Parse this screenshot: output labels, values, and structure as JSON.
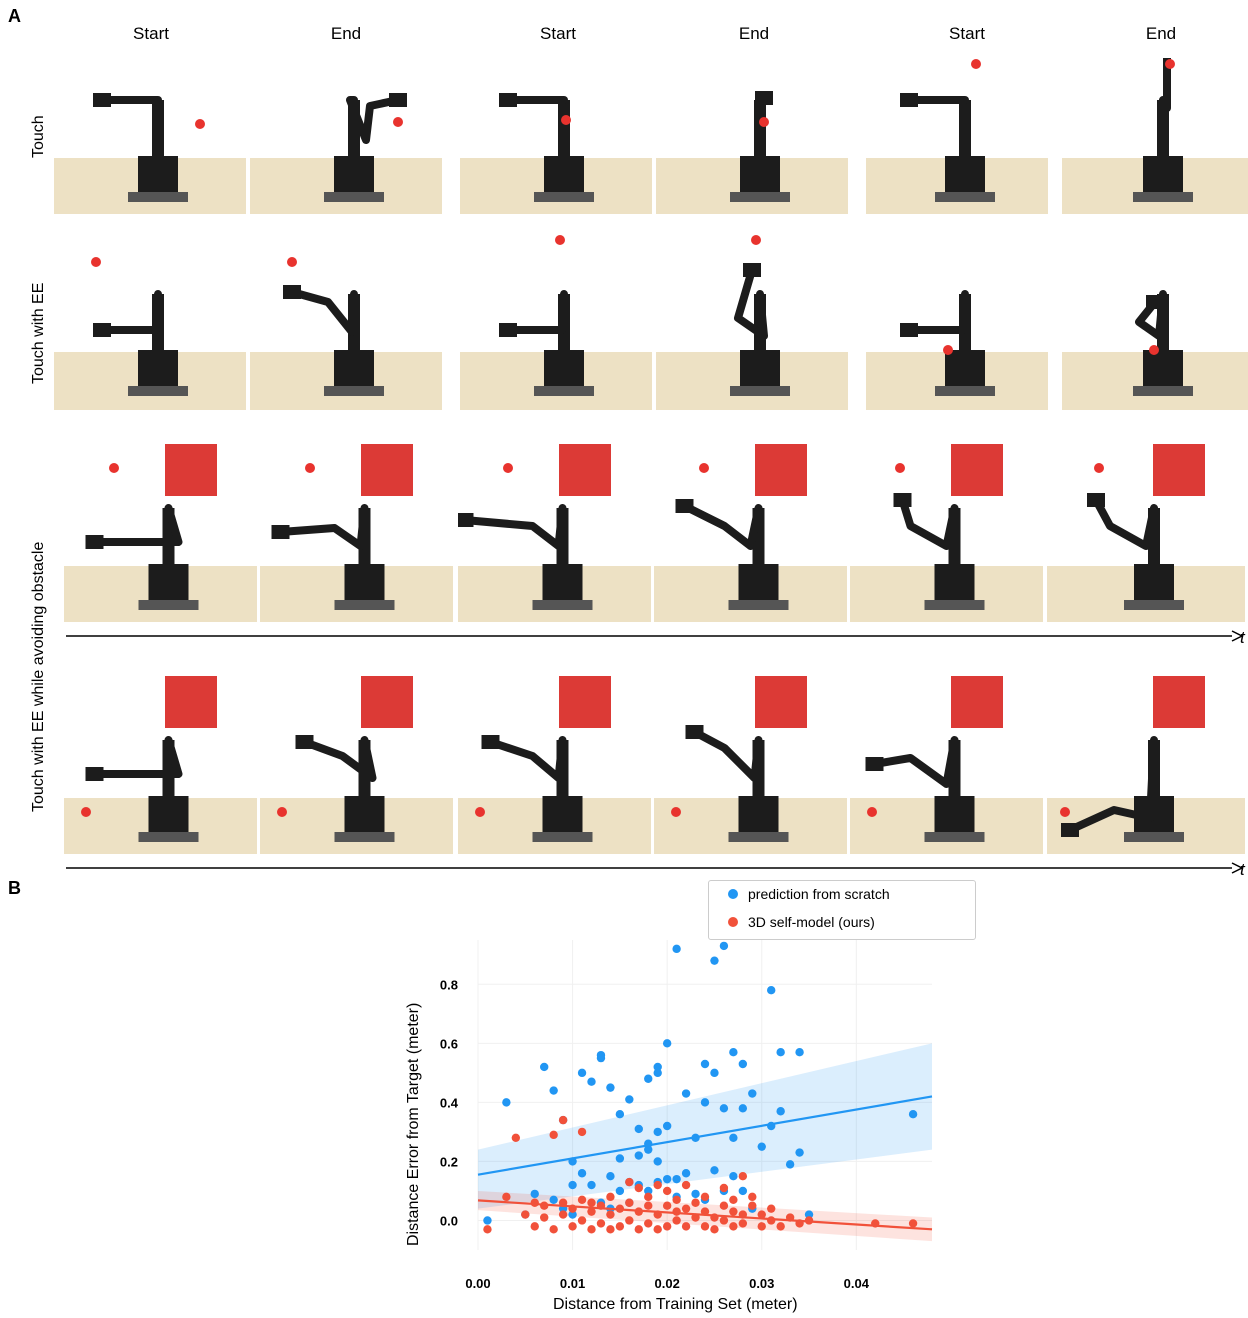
{
  "panel_a": {
    "label": "A",
    "columns": [
      "Start",
      "End",
      "Start",
      "End",
      "Start",
      "End"
    ],
    "rows": [
      "Touch",
      "Touch with EE",
      "Touch with EE while avoiding obstacle"
    ],
    "time_axis_label": "t",
    "colors": {
      "table": "#ede1c4",
      "robot": "#1c1c1c",
      "target": "#e8332e",
      "obstacle": "#dc3a36"
    }
  },
  "panel_b": {
    "label": "B",
    "legend": {
      "scratch": "prediction from scratch",
      "ours": "3D self-model (ours)"
    },
    "colors": {
      "scratch": "#2196f3",
      "ours": "#f1513a"
    }
  },
  "chart_data": {
    "type": "scatter",
    "title": "",
    "xlabel": "Distance from Training Set (meter)",
    "ylabel": "Distance Error from Target (meter)",
    "xlim": [
      0.0,
      0.048
    ],
    "ylim": [
      -0.1,
      0.95
    ],
    "xticks": [
      "0.00",
      "0.01",
      "0.02",
      "0.03",
      "0.04"
    ],
    "yticks": [
      "0.0",
      "0.2",
      "0.4",
      "0.6",
      "0.8"
    ],
    "grid": true,
    "legend_position": "top",
    "series": [
      {
        "name": "prediction from scratch",
        "points": [
          [
            0.001,
            0.0
          ],
          [
            0.003,
            0.4
          ],
          [
            0.005,
            0.02
          ],
          [
            0.006,
            0.09
          ],
          [
            0.007,
            0.52
          ],
          [
            0.008,
            0.44
          ],
          [
            0.008,
            0.07
          ],
          [
            0.009,
            0.04
          ],
          [
            0.009,
            0.34
          ],
          [
            0.01,
            0.2
          ],
          [
            0.01,
            0.12
          ],
          [
            0.01,
            0.02
          ],
          [
            0.011,
            0.16
          ],
          [
            0.011,
            0.5
          ],
          [
            0.012,
            0.47
          ],
          [
            0.012,
            0.12
          ],
          [
            0.013,
            0.55
          ],
          [
            0.013,
            0.56
          ],
          [
            0.013,
            0.06
          ],
          [
            0.014,
            0.15
          ],
          [
            0.014,
            0.45
          ],
          [
            0.014,
            0.04
          ],
          [
            0.015,
            0.21
          ],
          [
            0.015,
            0.36
          ],
          [
            0.015,
            0.1
          ],
          [
            0.016,
            0.41
          ],
          [
            0.016,
            0.13
          ],
          [
            0.016,
            0.06
          ],
          [
            0.017,
            0.31
          ],
          [
            0.017,
            0.22
          ],
          [
            0.017,
            0.12
          ],
          [
            0.018,
            0.24
          ],
          [
            0.018,
            0.48
          ],
          [
            0.018,
            0.26
          ],
          [
            0.018,
            0.1
          ],
          [
            0.019,
            0.5
          ],
          [
            0.019,
            0.52
          ],
          [
            0.019,
            0.3
          ],
          [
            0.019,
            0.2
          ],
          [
            0.019,
            0.13
          ],
          [
            0.02,
            0.6
          ],
          [
            0.02,
            0.14
          ],
          [
            0.02,
            0.32
          ],
          [
            0.021,
            0.92
          ],
          [
            0.021,
            0.14
          ],
          [
            0.021,
            0.08
          ],
          [
            0.022,
            0.43
          ],
          [
            0.022,
            0.16
          ],
          [
            0.023,
            0.28
          ],
          [
            0.023,
            0.09
          ],
          [
            0.024,
            0.53
          ],
          [
            0.024,
            0.4
          ],
          [
            0.024,
            0.07
          ],
          [
            0.025,
            0.88
          ],
          [
            0.025,
            0.5
          ],
          [
            0.025,
            0.17
          ],
          [
            0.026,
            0.93
          ],
          [
            0.026,
            0.38
          ],
          [
            0.026,
            0.1
          ],
          [
            0.027,
            0.57
          ],
          [
            0.027,
            0.28
          ],
          [
            0.027,
            0.15
          ],
          [
            0.028,
            0.53
          ],
          [
            0.028,
            0.38
          ],
          [
            0.028,
            0.1
          ],
          [
            0.029,
            0.43
          ],
          [
            0.029,
            0.04
          ],
          [
            0.03,
            0.25
          ],
          [
            0.031,
            0.78
          ],
          [
            0.031,
            0.32
          ],
          [
            0.032,
            0.57
          ],
          [
            0.032,
            0.37
          ],
          [
            0.033,
            0.19
          ],
          [
            0.034,
            0.57
          ],
          [
            0.034,
            0.23
          ],
          [
            0.035,
            0.02
          ],
          [
            0.046,
            0.36
          ]
        ]
      },
      {
        "name": "3D self-model (ours)",
        "points": [
          [
            0.001,
            -0.03
          ],
          [
            0.003,
            0.08
          ],
          [
            0.004,
            0.28
          ],
          [
            0.005,
            0.02
          ],
          [
            0.006,
            0.06
          ],
          [
            0.006,
            -0.02
          ],
          [
            0.007,
            0.01
          ],
          [
            0.007,
            0.05
          ],
          [
            0.008,
            0.29
          ],
          [
            0.008,
            -0.03
          ],
          [
            0.009,
            0.34
          ],
          [
            0.009,
            0.02
          ],
          [
            0.009,
            0.06
          ],
          [
            0.01,
            -0.02
          ],
          [
            0.01,
            0.04
          ],
          [
            0.011,
            0.3
          ],
          [
            0.011,
            0.0
          ],
          [
            0.011,
            0.07
          ],
          [
            0.012,
            0.06
          ],
          [
            0.012,
            -0.03
          ],
          [
            0.012,
            0.03
          ],
          [
            0.013,
            -0.01
          ],
          [
            0.013,
            0.05
          ],
          [
            0.014,
            0.02
          ],
          [
            0.014,
            -0.03
          ],
          [
            0.014,
            0.08
          ],
          [
            0.015,
            0.04
          ],
          [
            0.015,
            -0.02
          ],
          [
            0.016,
            0.13
          ],
          [
            0.016,
            0.0
          ],
          [
            0.016,
            0.06
          ],
          [
            0.017,
            0.03
          ],
          [
            0.017,
            -0.03
          ],
          [
            0.017,
            0.11
          ],
          [
            0.018,
            0.05
          ],
          [
            0.018,
            -0.01
          ],
          [
            0.018,
            0.08
          ],
          [
            0.019,
            0.02
          ],
          [
            0.019,
            -0.03
          ],
          [
            0.019,
            0.12
          ],
          [
            0.02,
            0.05
          ],
          [
            0.02,
            -0.02
          ],
          [
            0.02,
            0.1
          ],
          [
            0.021,
            0.03
          ],
          [
            0.021,
            0.0
          ],
          [
            0.021,
            0.07
          ],
          [
            0.022,
            -0.02
          ],
          [
            0.022,
            0.04
          ],
          [
            0.022,
            0.12
          ],
          [
            0.023,
            0.01
          ],
          [
            0.023,
            0.06
          ],
          [
            0.024,
            -0.02
          ],
          [
            0.024,
            0.03
          ],
          [
            0.024,
            0.08
          ],
          [
            0.025,
            0.01
          ],
          [
            0.025,
            -0.03
          ],
          [
            0.026,
            0.05
          ],
          [
            0.026,
            0.0
          ],
          [
            0.026,
            0.11
          ],
          [
            0.027,
            0.03
          ],
          [
            0.027,
            -0.02
          ],
          [
            0.027,
            0.07
          ],
          [
            0.028,
            0.02
          ],
          [
            0.028,
            0.15
          ],
          [
            0.028,
            -0.01
          ],
          [
            0.029,
            0.05
          ],
          [
            0.029,
            0.08
          ],
          [
            0.03,
            -0.02
          ],
          [
            0.03,
            0.02
          ],
          [
            0.031,
            0.0
          ],
          [
            0.031,
            0.04
          ],
          [
            0.032,
            -0.02
          ],
          [
            0.033,
            0.01
          ],
          [
            0.034,
            -0.01
          ],
          [
            0.035,
            0.0
          ],
          [
            0.042,
            -0.01
          ],
          [
            0.046,
            -0.01
          ]
        ]
      }
    ],
    "fits": [
      {
        "series": "prediction from scratch",
        "x": [
          0.0,
          0.048
        ],
        "y": [
          0.155,
          0.42
        ],
        "band_low": [
          0.04,
          0.24
        ],
        "band_high": [
          0.24,
          0.6
        ]
      },
      {
        "series": "3D self-model (ours)",
        "x": [
          0.0,
          0.048
        ],
        "y": [
          0.068,
          -0.03
        ],
        "band_low": [
          0.035,
          -0.07
        ],
        "band_high": [
          0.1,
          0.01
        ]
      }
    ]
  }
}
